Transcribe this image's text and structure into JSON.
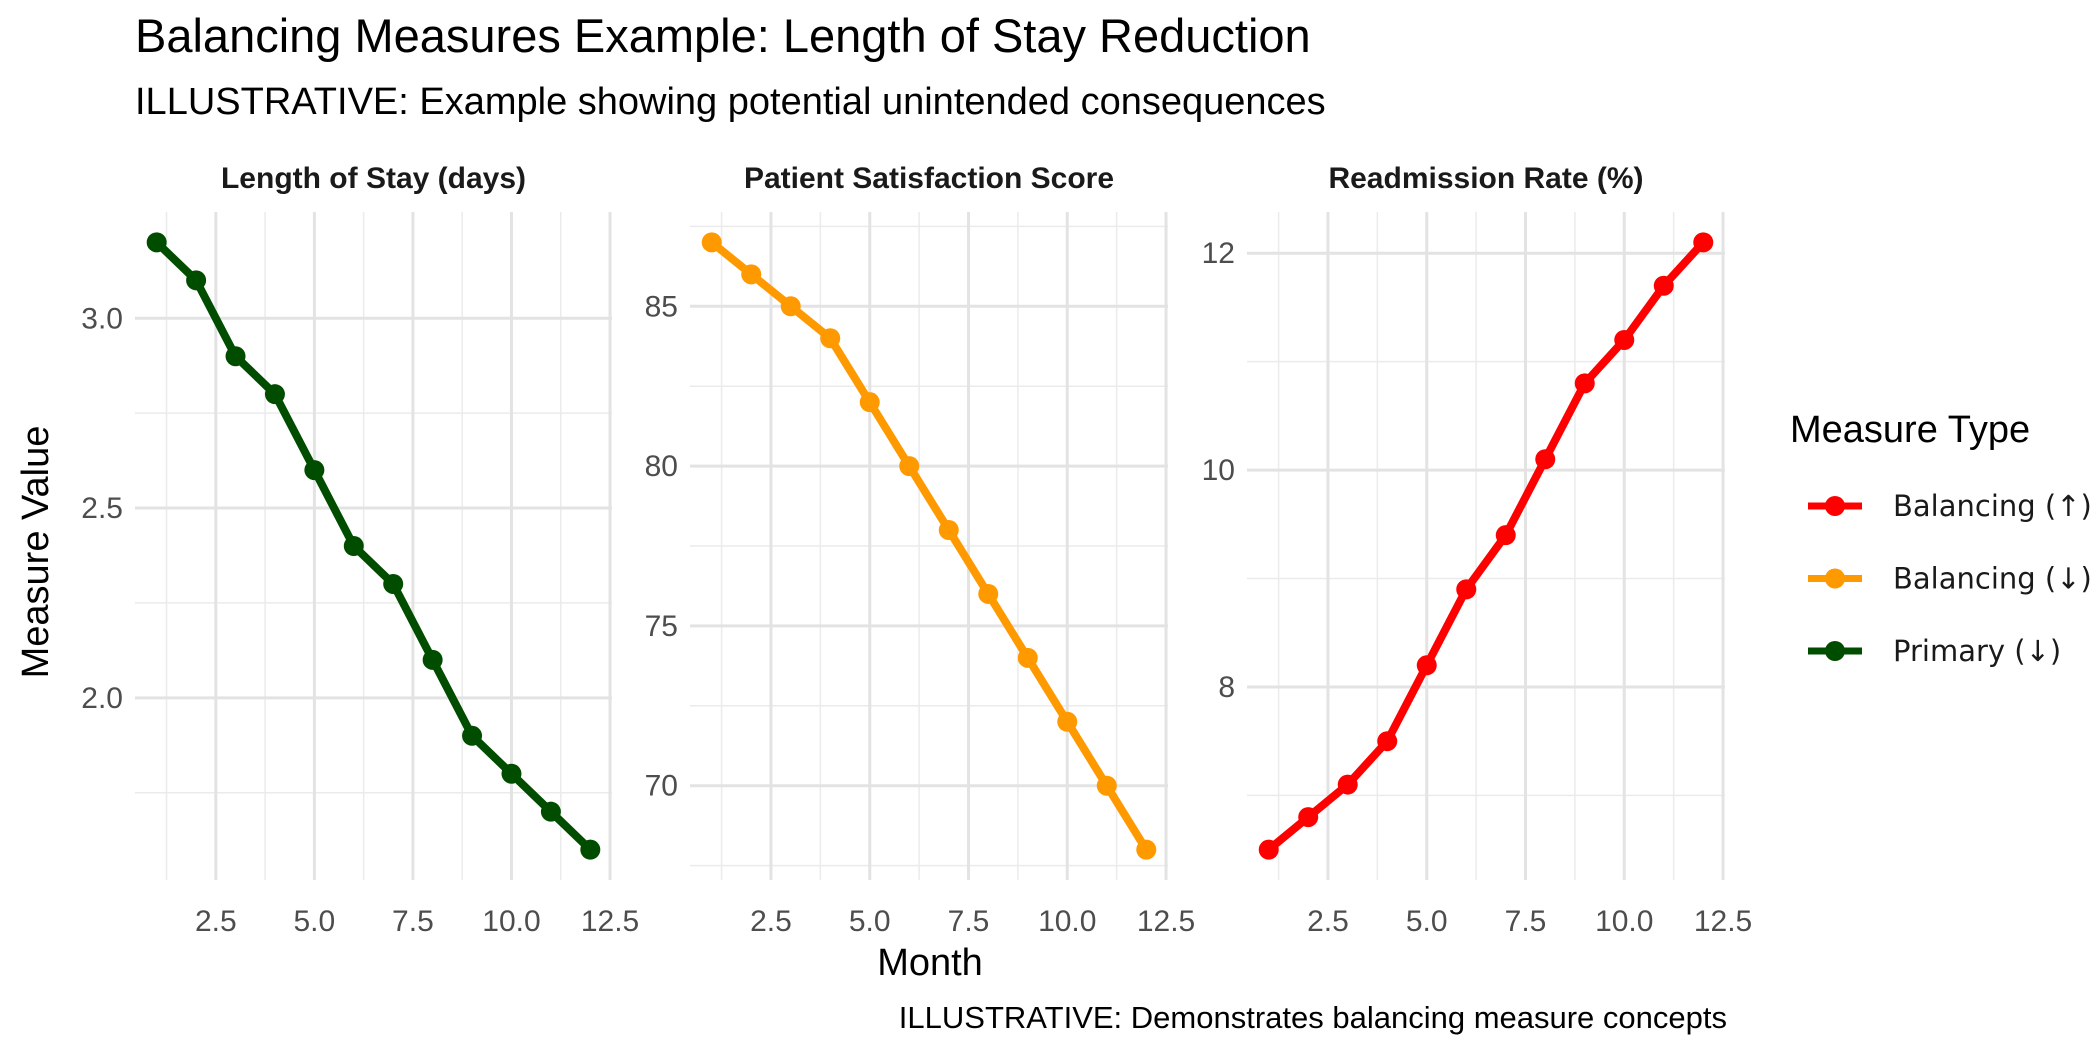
{
  "chart_data": {
    "type": "line",
    "title": "Balancing Measures Example: Length of Stay Reduction",
    "subtitle": "ILLUSTRATIVE: Example showing potential unintended consequences",
    "caption": "ILLUSTRATIVE: Demonstrates balancing measure concepts",
    "xlabel": "Month",
    "ylabel": "Measure Value",
    "grid": true,
    "legend": {
      "title": "Measure Type",
      "placement": "right",
      "entries": [
        {
          "label": "Balancing (↑)",
          "color": "#ff0000"
        },
        {
          "label": "Balancing (↓)",
          "color": "#ff9900"
        },
        {
          "label": "Primary (↓)",
          "color": "#004d00"
        }
      ]
    },
    "panels": [
      {
        "strip": "Length of Stay (days)",
        "measure_type": "Primary (↓)",
        "color": "#004d00",
        "x": [
          1,
          2,
          3,
          4,
          5,
          6,
          7,
          8,
          9,
          10,
          11,
          12
        ],
        "y": [
          3.2,
          3.1,
          2.9,
          2.8,
          2.6,
          2.4,
          2.3,
          2.1,
          1.9,
          1.8,
          1.7,
          1.6
        ],
        "xlim": [
          0.45,
          12.55
        ],
        "ylim": [
          1.52,
          3.28
        ],
        "xticks": [
          2.5,
          5.0,
          7.5,
          10.0,
          12.5
        ],
        "xtick_labels": [
          "2.5",
          "5.0",
          "7.5",
          "10.0",
          "12.5"
        ],
        "yticks": [
          2.0,
          2.5,
          3.0
        ],
        "ytick_labels": [
          "2.0",
          "2.5",
          "3.0"
        ],
        "yminor": [
          1.75,
          2.25,
          2.75
        ]
      },
      {
        "strip": "Patient Satisfaction Score",
        "measure_type": "Balancing (↓)",
        "color": "#ff9900",
        "x": [
          1,
          2,
          3,
          4,
          5,
          6,
          7,
          8,
          9,
          10,
          11,
          12
        ],
        "y": [
          87,
          86,
          85,
          84,
          82,
          80,
          78,
          76,
          74,
          72,
          70,
          68
        ],
        "xlim": [
          0.45,
          12.55
        ],
        "ylim": [
          67.05,
          87.95
        ],
        "xticks": [
          2.5,
          5.0,
          7.5,
          10.0,
          12.5
        ],
        "xtick_labels": [
          "2.5",
          "5.0",
          "7.5",
          "10.0",
          "12.5"
        ],
        "yticks": [
          70,
          75,
          80,
          85
        ],
        "ytick_labels": [
          "70",
          "75",
          "80",
          "85"
        ],
        "yminor": [
          67.5,
          72.5,
          77.5,
          82.5,
          87.5
        ]
      },
      {
        "strip": "Readmission Rate (%)",
        "measure_type": "Balancing (↑)",
        "color": "#ff0000",
        "x": [
          1,
          2,
          3,
          4,
          5,
          6,
          7,
          8,
          9,
          10,
          11,
          12
        ],
        "y": [
          6.5,
          6.8,
          7.1,
          7.5,
          8.2,
          8.9,
          9.4,
          10.1,
          10.8,
          11.2,
          11.7,
          12.1
        ],
        "xlim": [
          0.45,
          12.55
        ],
        "ylim": [
          6.22,
          12.38
        ],
        "xticks": [
          2.5,
          5.0,
          7.5,
          10.0,
          12.5
        ],
        "xtick_labels": [
          "2.5",
          "5.0",
          "7.5",
          "10.0",
          "12.5"
        ],
        "yticks": [
          8,
          10,
          12
        ],
        "ytick_labels": [
          "8",
          "10",
          "12"
        ],
        "yminor": [
          7,
          9,
          11
        ]
      }
    ]
  }
}
